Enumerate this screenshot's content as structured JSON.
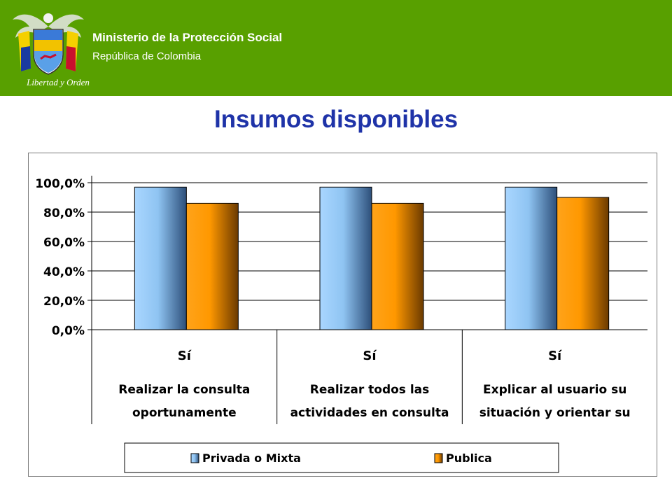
{
  "header": {
    "org_name": "Ministerio de la Protección Social",
    "country": "República de Colombia",
    "crest_motto": "Libertad y Orden"
  },
  "slide": {
    "title": "Insumos disponibles"
  },
  "colors": {
    "header_bg": "#58a000",
    "title": "#1f33a8",
    "series_privada": "#8fc4f2",
    "series_publica": "#ff9800"
  },
  "chart_data": {
    "type": "bar",
    "categories": [
      {
        "top": "Sí",
        "line1": "Realizar la consulta",
        "line2": "oportunamente"
      },
      {
        "top": "Sí",
        "line1": "Realizar todos las",
        "line2": "actividades en consulta"
      },
      {
        "top": "Sí",
        "line1": "Explicar al usuario su",
        "line2": "situación y orientar su"
      }
    ],
    "series": [
      {
        "name": "Privada o Mixta",
        "values": [
          97.0,
          97.0,
          97.0
        ],
        "color": "#8fc4f2"
      },
      {
        "name": "Publica",
        "values": [
          86.0,
          86.0,
          90.0
        ],
        "color": "#ff9800"
      }
    ],
    "ylim": [
      0,
      100
    ],
    "yticks": [
      {
        "value": 0,
        "label": "0,0%"
      },
      {
        "value": 20,
        "label": "20,0%"
      },
      {
        "value": 40,
        "label": "40,0%"
      },
      {
        "value": 60,
        "label": "60,0%"
      },
      {
        "value": 80,
        "label": "80,0%"
      },
      {
        "value": 100,
        "label": "100,0%"
      }
    ],
    "grid": true,
    "legend": "bottom"
  }
}
